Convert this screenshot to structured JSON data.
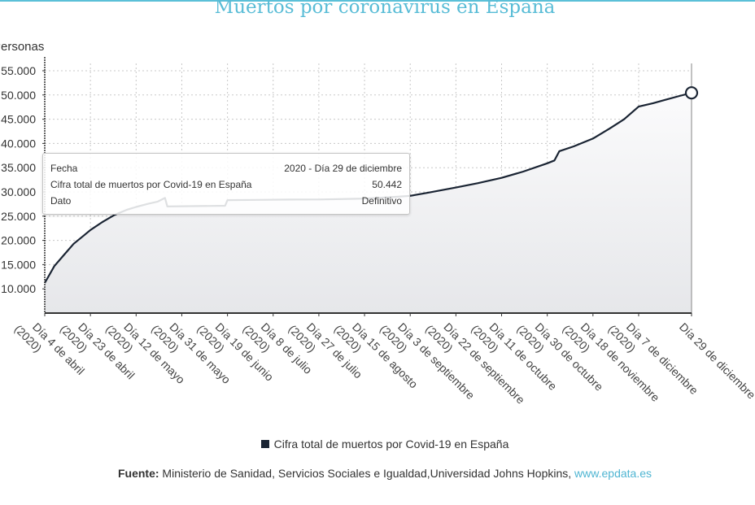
{
  "title": "Muertos por coronavirus en España",
  "chart_data": {
    "type": "area",
    "title": "Muertos por coronavirus en España",
    "ylabel": "Personas",
    "ylim": [
      5000,
      56500
    ],
    "yticks": [
      10000,
      15000,
      20000,
      25000,
      30000,
      35000,
      40000,
      45000,
      50000,
      55000
    ],
    "ytick_labels": [
      "10.000",
      "15.000",
      "20.000",
      "25.000",
      "30.000",
      "35.000",
      "40.000",
      "45.000",
      "50.000",
      "55.000"
    ],
    "xlim": [
      "2020-04-04",
      "2020-12-29"
    ],
    "xticks": [
      "2020-04-04",
      "2020-04-23",
      "2020-05-12",
      "2020-05-31",
      "2020-06-19",
      "2020-07-08",
      "2020-07-27",
      "2020-08-15",
      "2020-09-03",
      "2020-09-22",
      "2020-10-11",
      "2020-10-30",
      "2020-11-18",
      "2020-12-07",
      "2020-12-29"
    ],
    "xtick_labels": [
      [
        "Día 4 de abril",
        "(2020)"
      ],
      [
        "Día 23 de abril",
        "(2020)"
      ],
      [
        "Día 12 de mayo",
        "(2020)"
      ],
      [
        "Día 31 de mayo",
        "(2020)"
      ],
      [
        "Día 19 de junio",
        "(2020)"
      ],
      [
        "Día 8 de julio",
        "(2020)"
      ],
      [
        "Día 27 de julio",
        "(2020)"
      ],
      [
        "Día 15 de agosto",
        "(2020)"
      ],
      [
        "Día 3 de septiembre",
        "(2020)"
      ],
      [
        "Día 22 de septiembre",
        "(2020)"
      ],
      [
        "Día 11 de octubre",
        "(2020)"
      ],
      [
        "Día 30 de octubre",
        "(2020)"
      ],
      [
        "Día 18 de noviembre",
        "(2020)"
      ],
      [
        "Día 7 de diciembre",
        "(2020)"
      ],
      [
        "Día 29 de diciembre",
        ""
      ]
    ],
    "grid": true,
    "legend": "bottom",
    "series": [
      {
        "name": "Cifra total de muertos por Covid-19 en España",
        "color": "#1a2433",
        "x": [
          "2020-04-04",
          "2020-04-08",
          "2020-04-12",
          "2020-04-16",
          "2020-04-20",
          "2020-04-23",
          "2020-04-28",
          "2020-05-03",
          "2020-05-08",
          "2020-05-12",
          "2020-05-17",
          "2020-05-21",
          "2020-05-24",
          "2020-05-25",
          "2020-06-18",
          "2020-06-19",
          "2020-07-01",
          "2020-07-15",
          "2020-07-27",
          "2020-08-10",
          "2020-08-15",
          "2020-08-25",
          "2020-09-03",
          "2020-09-10",
          "2020-09-22",
          "2020-10-01",
          "2020-10-11",
          "2020-10-20",
          "2020-10-30",
          "2020-11-02",
          "2020-11-04",
          "2020-11-10",
          "2020-11-18",
          "2020-11-25",
          "2020-12-01",
          "2020-12-07",
          "2020-12-13",
          "2020-12-18",
          "2020-12-24",
          "2020-12-29"
        ],
        "y": [
          11200,
          14700,
          17000,
          19300,
          20900,
          22150,
          23800,
          25250,
          26300,
          26900,
          27550,
          28000,
          28750,
          27000,
          27150,
          28300,
          28360,
          28420,
          28440,
          28580,
          28620,
          28900,
          29200,
          29800,
          30900,
          31800,
          32900,
          34200,
          35900,
          36500,
          38400,
          39400,
          41000,
          43100,
          45000,
          47600,
          48300,
          49000,
          49800,
          50442
        ]
      }
    ],
    "highlight": {
      "x": "2020-12-29",
      "y": 50442
    }
  },
  "tooltip": {
    "rows": [
      {
        "label": "Fecha",
        "value": "2020 - Día 29 de diciembre"
      },
      {
        "label": "Cifra total de muertos por Covid-19 en España",
        "value": "50.442"
      },
      {
        "label": "Dato",
        "value": "Definitivo"
      }
    ]
  },
  "legend": {
    "label": "Cifra total de muertos por Covid-19 en España",
    "color": "#1a2433"
  },
  "source": {
    "prefix": "Fuente:",
    "text": " Ministerio de Sanidad, Servicios Sociales e Igualdad,Universidad Johns Hopkins, ",
    "link": "www.epdata.es"
  }
}
